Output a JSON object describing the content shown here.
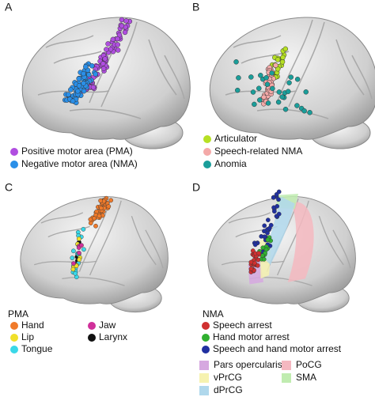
{
  "panels": [
    {
      "label": "A",
      "legend": [
        {
          "text": "Positive motor area (PMA)",
          "color": "#b04ee0"
        },
        {
          "text": "Negative motor area (NMA)",
          "color": "#2a8fe8"
        }
      ]
    },
    {
      "label": "B",
      "legend": [
        {
          "text": "Articulator",
          "color": "#b6e024"
        },
        {
          "text": "Speech-related NMA",
          "color": "#f4a9a8"
        },
        {
          "text": "Anomia",
          "color": "#1a9e9a"
        }
      ]
    },
    {
      "label": "C",
      "heading": "PMA",
      "legend": [
        {
          "text": "Hand",
          "color": "#f07a2a"
        },
        {
          "text": "Lip",
          "color": "#f0e02a"
        },
        {
          "text": "Tongue",
          "color": "#3ad8e8"
        },
        {
          "text": "Jaw",
          "color": "#d0309a"
        },
        {
          "text": "Larynx",
          "color": "#111111"
        }
      ]
    },
    {
      "label": "D",
      "heading": "NMA",
      "legend": [
        {
          "text": "Speech arrest",
          "color": "#d03030"
        },
        {
          "text": "Hand motor arrest",
          "color": "#30b030"
        },
        {
          "text": "Speech and hand motor arrest",
          "color": "#2030a0"
        }
      ],
      "regions": [
        {
          "text": "Pars opercularis",
          "color": "#d6a8e0"
        },
        {
          "text": "PoCG",
          "color": "#f4b8c0"
        },
        {
          "text": "vPrCG",
          "color": "#f6f2b0"
        },
        {
          "text": "SMA",
          "color": "#c0ecb0"
        },
        {
          "text": "dPrCG",
          "color": "#b0d8ec"
        }
      ]
    }
  ]
}
